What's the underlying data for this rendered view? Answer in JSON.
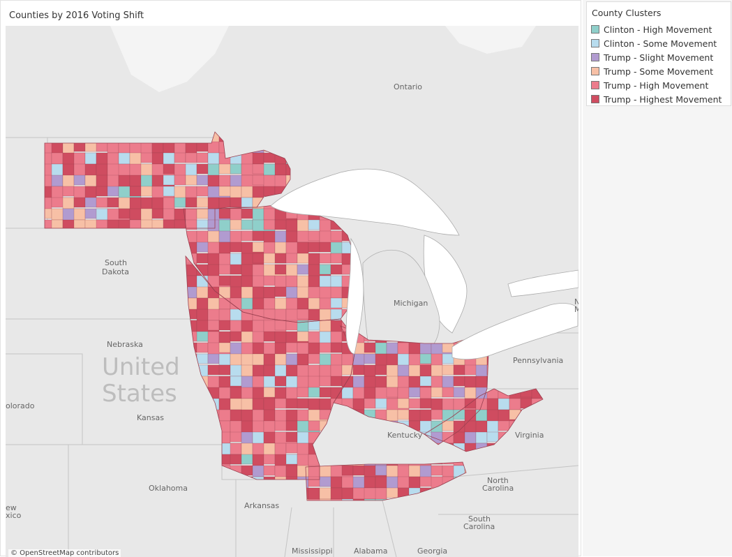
{
  "title": "Counties by 2016 Voting Shift",
  "legend": {
    "title": "County Clusters",
    "items": [
      {
        "label": "Clinton - High Movement",
        "color": "#8fcfca"
      },
      {
        "label": "Clinton - Some Movement",
        "color": "#b8dcee"
      },
      {
        "label": "Trump - Slight Movement",
        "color": "#b19bd0"
      },
      {
        "label": "Trump - Some Movement",
        "color": "#f7c0a6"
      },
      {
        "label": "Trump - High Movement",
        "color": "#ec7c8c"
      },
      {
        "label": "Trump - Highest Movement",
        "color": "#cf4c60"
      }
    ]
  },
  "map_labels": {
    "ontario": "Ontario",
    "south_dakota_1": "South",
    "south_dakota_2": "Dakota",
    "nebraska": "Nebraska",
    "kansas": "Kansas",
    "colorado": "olorado",
    "oklahoma": "Oklahoma",
    "arkansas": "Arkansas",
    "new_mexico_1": "ew",
    "new_mexico_2": "xico",
    "mississippi": "Mississippi",
    "alabama": "Alabama",
    "georgia": "Georgia",
    "michigan": "Michigan",
    "kentucky": "Kentucky",
    "virginia": "Virginia",
    "pennsylvania": "Pennsylvania",
    "north_carolina_1": "North",
    "north_carolina_2": "Carolina",
    "south_carolina_1": "South",
    "south_carolina_2": "Carolina",
    "united": "United",
    "states": "States",
    "edge_m": "N",
    "edge_m2": "M"
  },
  "attribution": "© OpenStreetMap contributors",
  "colors": {
    "land": "#e9e9e9",
    "water": "#ffffff",
    "border": "#bdbdbd"
  }
}
